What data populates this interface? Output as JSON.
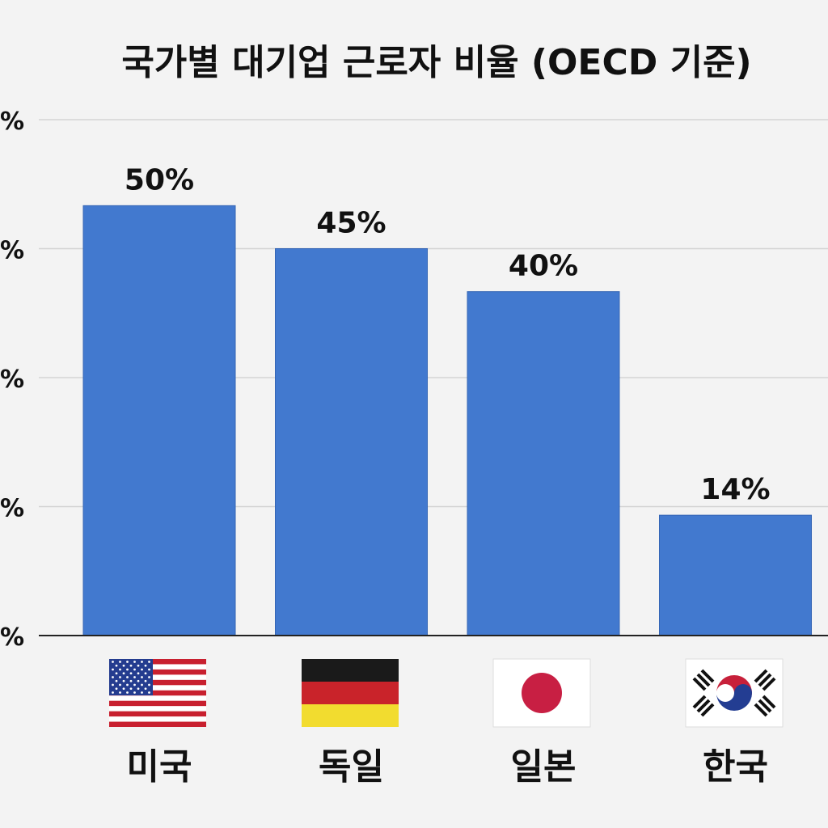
{
  "chart_data": {
    "type": "bar",
    "title": "국가별 대기업 근로자 비율 (OECD 기준)",
    "categories": [
      "미국",
      "독일",
      "일본",
      "한국"
    ],
    "values": [
      50,
      45,
      40,
      14
    ],
    "data_labels": [
      "50%",
      "45%",
      "40%",
      "14%"
    ],
    "ylim": [
      0,
      60
    ],
    "yticks": [
      0,
      15,
      30,
      45,
      60
    ],
    "ytick_labels": [
      "%",
      "%",
      "%",
      "%",
      "%"
    ],
    "grid": true,
    "bar_color": "#4279cf",
    "flags": [
      "us-flag-icon",
      "germany-flag-icon",
      "japan-flag-icon",
      "korea-flag-icon"
    ]
  }
}
